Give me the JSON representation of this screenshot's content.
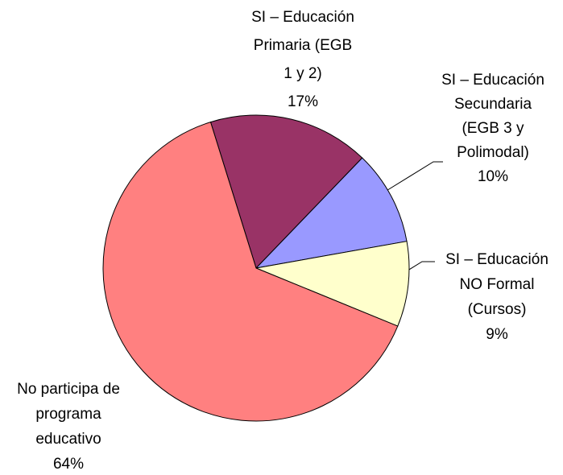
{
  "chart_data": {
    "type": "pie",
    "labels": [
      [
        "SI – Educación",
        "Primaria (EGB",
        "1 y 2)"
      ],
      [
        "SI – Educación",
        "Secundaria",
        "(EGB 3 y",
        "Polimodal)"
      ],
      [
        "SI – Educación",
        "NO Formal",
        "(Cursos)"
      ],
      [
        "No participa de",
        "programa",
        "educativo"
      ]
    ],
    "values": [
      17,
      10,
      9,
      64
    ],
    "value_labels": [
      "17%",
      "10%",
      "9%",
      "64%"
    ],
    "colors": [
      "#993366",
      "#9999ff",
      "#ffffcc",
      "#ff8080"
    ]
  }
}
